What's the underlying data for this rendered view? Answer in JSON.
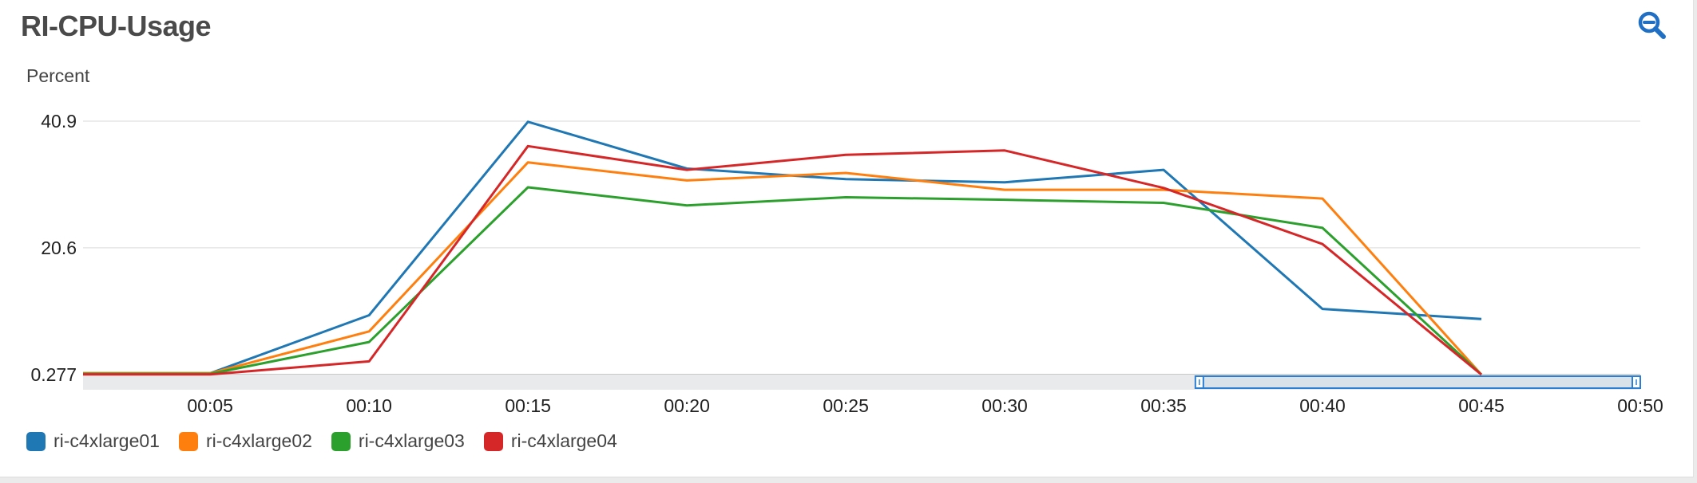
{
  "widget": {
    "title": "RI-CPU-Usage",
    "zoom_icon": "zoom-out-icon"
  },
  "colors": {
    "accent": "#1f77b4",
    "grid": "#e6e6e6",
    "navigator_fill": "#e9eaeb",
    "navigator_handle": "#2a7fd4"
  },
  "chart_data": {
    "type": "line",
    "title": "RI-CPU-Usage",
    "ylabel": "Percent",
    "xlabel": "",
    "x": [
      "00:01",
      "00:05",
      "00:10",
      "00:15",
      "00:20",
      "00:25",
      "00:30",
      "00:35",
      "00:40",
      "00:45"
    ],
    "x_ticks": [
      "00:05",
      "00:10",
      "00:15",
      "00:20",
      "00:25",
      "00:30",
      "00:35",
      "00:40",
      "00:45",
      "00:50"
    ],
    "y_ticks": [
      {
        "value": 0.277,
        "label": "0.277"
      },
      {
        "value": 20.6,
        "label": "20.6"
      },
      {
        "value": 40.9,
        "label": "40.9"
      }
    ],
    "xlim": [
      "00:01",
      "00:50"
    ],
    "ylim": [
      0.277,
      40.9
    ],
    "grid": true,
    "legend_position": "bottom-left",
    "series": [
      {
        "name": "ri-c4xlarge01",
        "color": "#1f77b4",
        "values": [
          0.5,
          0.5,
          9.8,
          40.8,
          33.3,
          31.6,
          31.1,
          33.1,
          10.8,
          9.2
        ]
      },
      {
        "name": "ri-c4xlarge02",
        "color": "#ff7f0e",
        "values": [
          0.5,
          0.5,
          7.2,
          34.3,
          31.4,
          32.6,
          29.9,
          29.9,
          28.5,
          0.28
        ]
      },
      {
        "name": "ri-c4xlarge03",
        "color": "#2ca02c",
        "values": [
          0.4,
          0.4,
          5.5,
          30.3,
          27.4,
          28.7,
          28.3,
          27.8,
          23.8,
          0.28
        ]
      },
      {
        "name": "ri-c4xlarge04",
        "color": "#d62728",
        "values": [
          0.3,
          0.3,
          2.4,
          36.9,
          33.1,
          35.5,
          36.2,
          30.2,
          21.2,
          0.28
        ]
      }
    ]
  }
}
